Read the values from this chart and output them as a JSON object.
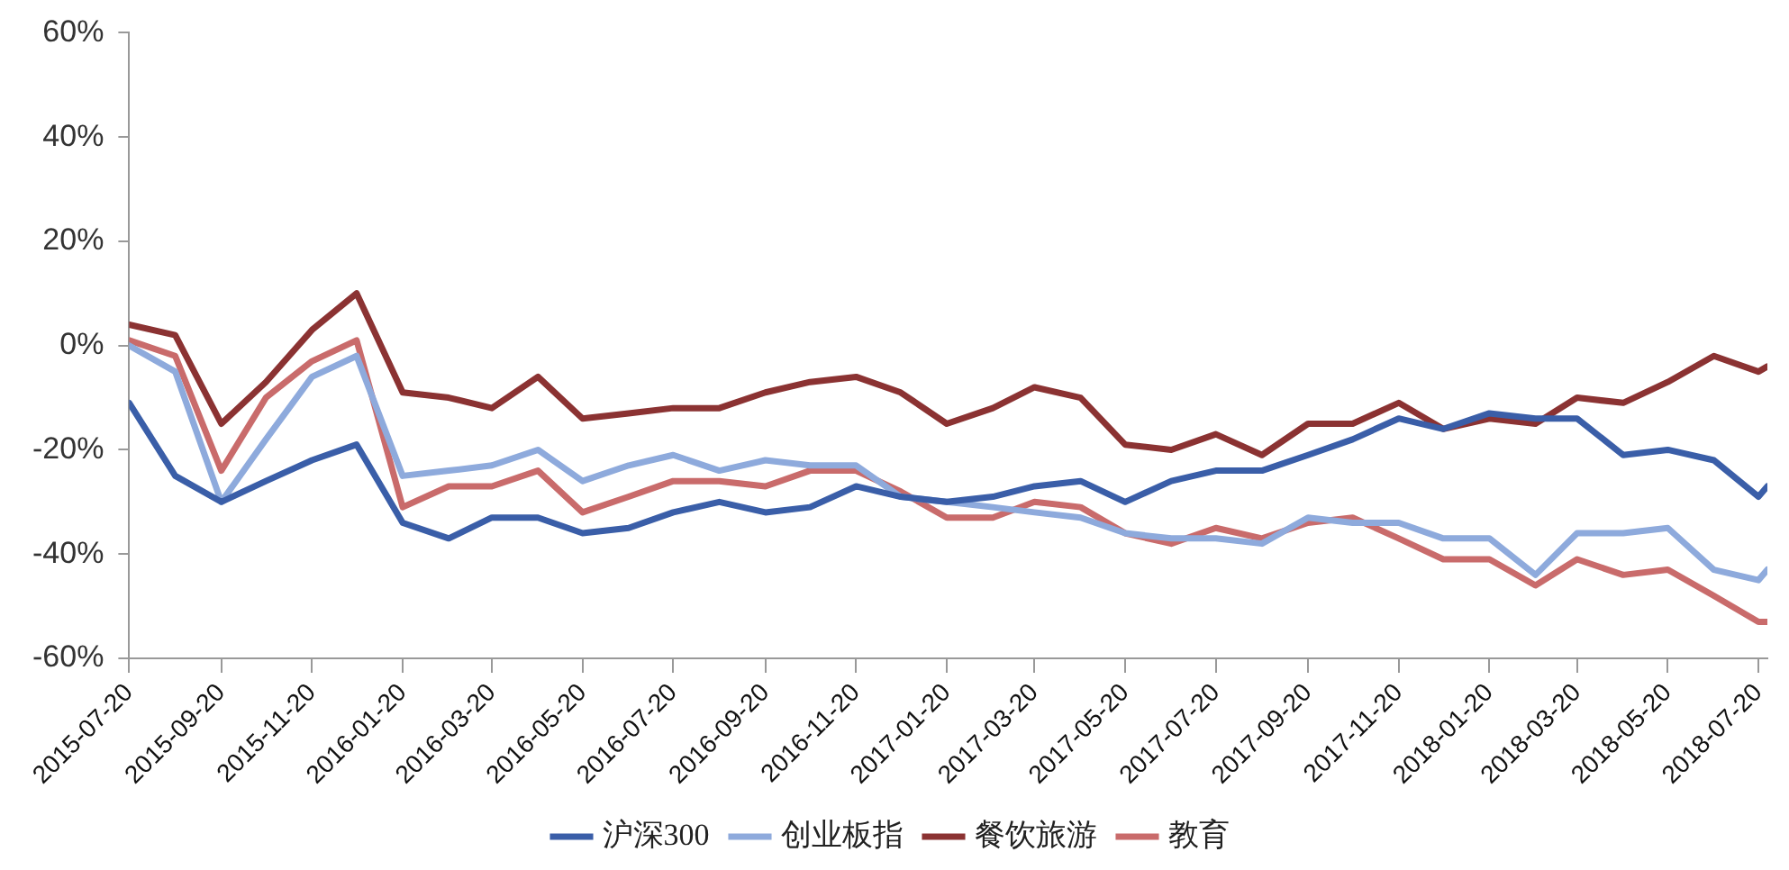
{
  "chart_data": {
    "type": "line",
    "x": [
      "2015-07-20",
      "2015-08-20",
      "2015-09-20",
      "2015-10-20",
      "2015-11-20",
      "2015-12-20",
      "2016-01-20",
      "2016-02-20",
      "2016-03-20",
      "2016-04-20",
      "2016-05-20",
      "2016-06-20",
      "2016-07-20",
      "2016-08-20",
      "2016-09-20",
      "2016-10-20",
      "2016-11-20",
      "2016-12-20",
      "2017-01-20",
      "2017-02-20",
      "2017-03-20",
      "2017-04-20",
      "2017-05-20",
      "2017-06-20",
      "2017-07-20",
      "2017-08-20",
      "2017-09-20",
      "2017-10-20",
      "2017-11-20",
      "2017-12-20",
      "2018-01-20",
      "2018-02-20",
      "2018-03-20",
      "2018-04-20",
      "2018-05-20",
      "2018-06-20",
      "2018-07-20",
      "2018-07-26"
    ],
    "series": [
      {
        "name": "沪深300",
        "color": "#3a5ea8",
        "values": [
          -11,
          -25,
          -30,
          -26,
          -22,
          -19,
          -34,
          -37,
          -33,
          -33,
          -36,
          -35,
          -32,
          -30,
          -32,
          -31,
          -27,
          -29,
          -30,
          -29,
          -27,
          -26,
          -30,
          -26,
          -24,
          -24,
          -21,
          -18,
          -14,
          -16,
          -13,
          -14,
          -14,
          -21,
          -20,
          -22,
          -29,
          -27
        ]
      },
      {
        "name": "创业板指",
        "color": "#8eaadc",
        "values": [
          0,
          -5,
          -30,
          -18,
          -6,
          -2,
          -25,
          -24,
          -23,
          -20,
          -26,
          -23,
          -21,
          -24,
          -22,
          -23,
          -23,
          -29,
          -30,
          -31,
          -32,
          -33,
          -36,
          -37,
          -37,
          -38,
          -33,
          -34,
          -34,
          -37,
          -37,
          -44,
          -36,
          -36,
          -35,
          -43,
          -45,
          -43
        ]
      },
      {
        "name": "餐饮旅游",
        "color": "#8b3232",
        "values": [
          4,
          2,
          -15,
          -7,
          3,
          10,
          -9,
          -10,
          -12,
          -6,
          -14,
          -13,
          -12,
          -12,
          -9,
          -7,
          -6,
          -9,
          -15,
          -12,
          -8,
          -10,
          -19,
          -20,
          -17,
          -21,
          -15,
          -15,
          -11,
          -16,
          -14,
          -15,
          -10,
          -11,
          -7,
          -2,
          -5,
          -4
        ]
      },
      {
        "name": "教育",
        "color": "#c96b6b",
        "values": [
          1,
          -2,
          -24,
          -10,
          -3,
          1,
          -31,
          -27,
          -27,
          -24,
          -32,
          -29,
          -26,
          -26,
          -27,
          -24,
          -24,
          -28,
          -33,
          -33,
          -30,
          -31,
          -36,
          -38,
          -35,
          -37,
          -34,
          -33,
          -37,
          -41,
          -41,
          -46,
          -41,
          -44,
          -43,
          -48,
          -53,
          -53
        ]
      }
    ],
    "xlim": [
      "2015-07-20",
      "2018-07-26"
    ],
    "xticks": [
      "2015-07-20",
      "2015-09-20",
      "2015-11-20",
      "2016-01-20",
      "2016-03-20",
      "2016-05-20",
      "2016-07-20",
      "2016-09-20",
      "2016-11-20",
      "2017-01-20",
      "2017-03-20",
      "2017-05-20",
      "2017-07-20",
      "2017-09-20",
      "2017-11-20",
      "2018-01-20",
      "2018-03-20",
      "2018-05-20",
      "2018-07-20"
    ],
    "ylim": [
      -60,
      60
    ],
    "yticks": [
      {
        "value": -60,
        "label": "-60%"
      },
      {
        "value": -40,
        "label": "-40%"
      },
      {
        "value": -20,
        "label": "-20%"
      },
      {
        "value": 0,
        "label": "0%"
      },
      {
        "value": 20,
        "label": "20%"
      },
      {
        "value": 40,
        "label": "40%"
      },
      {
        "value": 60,
        "label": "60%"
      }
    ],
    "grid": false,
    "legend": "bottom",
    "marker": "none",
    "line_style": "solid"
  }
}
